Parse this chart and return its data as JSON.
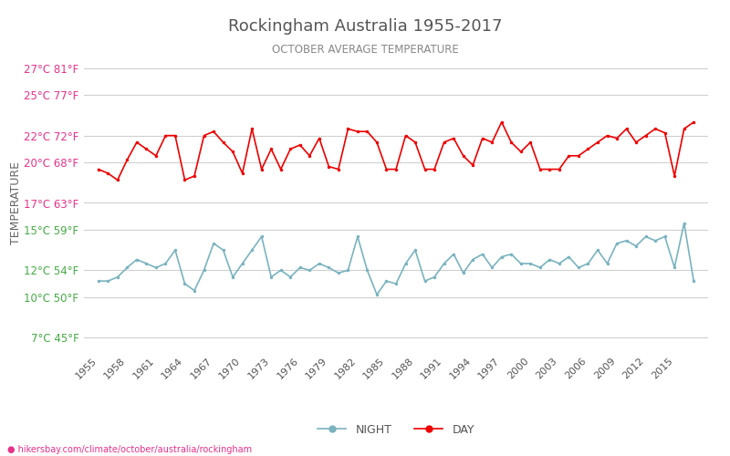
{
  "title": "Rockingham Australia 1955-2017",
  "subtitle": "OCTOBER AVERAGE TEMPERATURE",
  "ylabel": "TEMPERATURE",
  "xlabel_url": "hikersbay.com/climate/october/australia/rockingham",
  "yticks_c": [
    7,
    10,
    12,
    15,
    17,
    20,
    22,
    25,
    27
  ],
  "yticks_f": [
    45,
    50,
    54,
    59,
    63,
    68,
    72,
    77,
    81
  ],
  "ylim": [
    6,
    28
  ],
  "years": [
    1955,
    1956,
    1957,
    1958,
    1959,
    1960,
    1961,
    1962,
    1963,
    1964,
    1965,
    1966,
    1967,
    1968,
    1969,
    1970,
    1971,
    1972,
    1973,
    1974,
    1975,
    1976,
    1977,
    1978,
    1979,
    1980,
    1981,
    1982,
    1983,
    1984,
    1985,
    1986,
    1987,
    1988,
    1989,
    1990,
    1991,
    1992,
    1993,
    1994,
    1995,
    1996,
    1997,
    1998,
    1999,
    2000,
    2001,
    2002,
    2003,
    2004,
    2005,
    2006,
    2007,
    2008,
    2009,
    2010,
    2011,
    2012,
    2013,
    2014,
    2015,
    2016,
    2017
  ],
  "day_temps": [
    19.5,
    19.2,
    18.7,
    20.2,
    21.5,
    21.0,
    20.5,
    22.0,
    22.0,
    18.7,
    19.0,
    22.0,
    22.3,
    21.5,
    20.8,
    19.2,
    22.5,
    19.5,
    21.0,
    19.5,
    21.0,
    21.3,
    20.5,
    21.8,
    19.7,
    19.5,
    22.5,
    22.3,
    22.3,
    21.5,
    19.5,
    19.5,
    22.0,
    21.5,
    19.5,
    19.5,
    21.5,
    21.8,
    20.5,
    19.8,
    21.8,
    21.5,
    23.0,
    21.5,
    20.8,
    21.5,
    19.5,
    19.5,
    19.5,
    20.5,
    20.5,
    21.0,
    21.5,
    22.0,
    21.8,
    22.5,
    21.5,
    22.0,
    22.5,
    22.2,
    19.0,
    22.5,
    23.0
  ],
  "night_temps": [
    11.2,
    11.2,
    11.5,
    12.2,
    12.8,
    12.5,
    12.2,
    12.5,
    13.5,
    11.0,
    10.5,
    12.0,
    14.0,
    13.5,
    11.5,
    12.5,
    13.5,
    14.5,
    11.5,
    12.0,
    11.5,
    12.2,
    12.0,
    12.5,
    12.2,
    11.8,
    12.0,
    14.5,
    12.0,
    10.2,
    11.2,
    11.0,
    12.5,
    13.5,
    11.2,
    11.5,
    12.5,
    13.2,
    11.8,
    12.8,
    13.2,
    12.2,
    13.0,
    13.2,
    12.5,
    12.5,
    12.2,
    12.8,
    12.5,
    13.0,
    12.2,
    12.5,
    13.5,
    12.5,
    14.0,
    14.2,
    13.8,
    14.5,
    14.2,
    14.5,
    12.2,
    15.5,
    11.2
  ],
  "day_color": "#ee0000",
  "night_color": "#7ab3bf",
  "title_color": "#555555",
  "subtitle_color": "#888888",
  "ylabel_color": "#666666",
  "ytick_color_red": "#e8318a",
  "ytick_color_green": "#44aa44",
  "grid_color": "#d0d0d0",
  "bg_color": "#ffffff",
  "legend_night_color": "#7ab3bf",
  "legend_day_color": "#ee0000",
  "url_color": "#e8318a",
  "xtick_years": [
    1955,
    1958,
    1961,
    1964,
    1967,
    1970,
    1973,
    1976,
    1979,
    1982,
    1985,
    1988,
    1991,
    1994,
    1997,
    2000,
    2003,
    2006,
    2009,
    2012,
    2015
  ]
}
